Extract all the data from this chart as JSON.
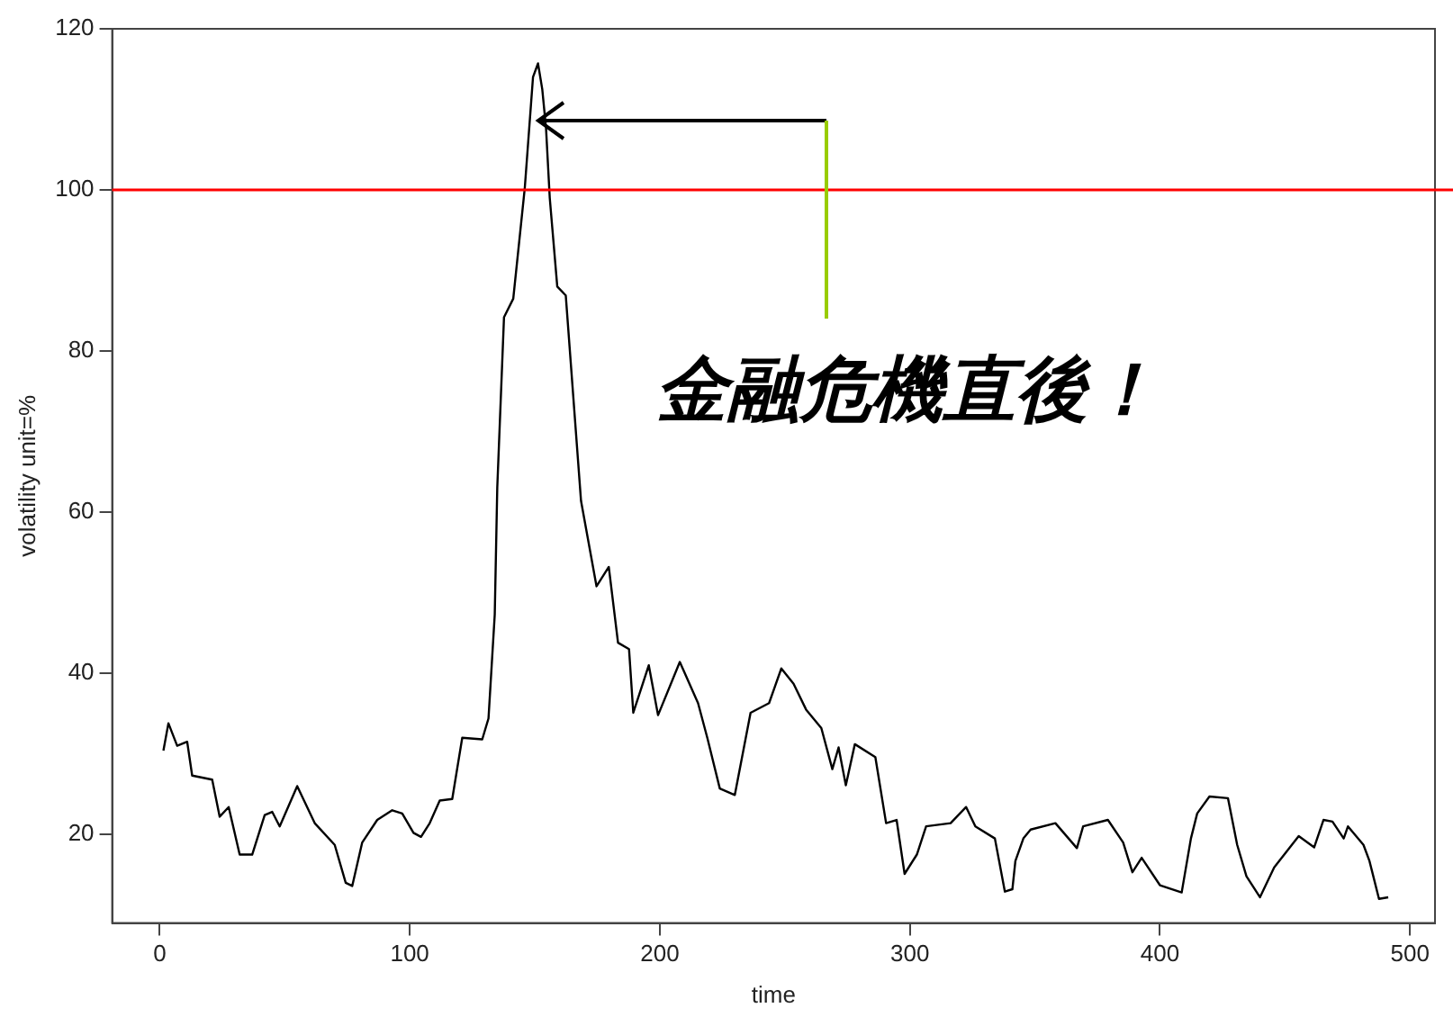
{
  "chart_data": {
    "type": "line",
    "xlabel": "time",
    "ylabel": "volatility unit=%",
    "x": [
      1.5,
      3.5,
      7,
      11,
      13,
      21,
      24,
      27.6,
      32,
      37,
      42,
      45,
      48,
      55,
      62,
      70,
      74.4,
      77,
      81,
      87,
      93,
      97,
      101.5,
      104.5,
      108,
      112,
      117,
      121,
      129,
      131.5,
      134,
      135,
      137.7,
      141.4,
      146,
      149.3,
      151.3,
      153,
      154.5,
      156,
      159,
      162.4,
      168.5,
      174.7,
      179.6,
      183.3,
      187.7,
      189.4,
      195.6,
      199.3,
      208,
      215.3,
      219,
      224,
      230,
      236.3,
      243.7,
      248.6,
      253.5,
      258.5,
      264.6,
      269,
      271.5,
      274.4,
      278,
      286.2,
      290.5,
      294.7,
      297.9,
      302.8,
      306.5,
      316.3,
      322.5,
      326.2,
      334,
      338,
      341,
      342.2,
      345.4,
      348.3,
      358.2,
      366.8,
      369.3,
      379.2,
      385.3,
      389,
      392.7,
      400,
      408.7,
      412.4,
      414.9,
      419.8,
      427.2,
      430.9,
      434.6,
      440,
      445.7,
      455.5,
      461.7,
      465.4,
      469,
      473.5,
      475.2,
      481.4,
      483.8,
      487.6,
      491.3
    ],
    "series": [
      {
        "color": "#000000",
        "values": [
          30.4,
          33.8,
          31,
          31.5,
          27.3,
          26.8,
          22.2,
          23.4,
          17.5,
          17.5,
          22.4,
          22.8,
          21,
          26,
          21.4,
          18.7,
          14,
          13.6,
          19,
          21.8,
          23,
          22.6,
          20.2,
          19.7,
          21.4,
          24.2,
          24.4,
          32,
          31.8,
          34.4,
          47.3,
          63,
          84.2,
          86.5,
          100.2,
          114,
          115.7,
          112.5,
          107.7,
          99,
          88,
          86.9,
          61.4,
          50.8,
          53.2,
          43.8,
          43,
          35.1,
          41,
          34.8,
          41.4,
          36.3,
          32,
          25.7,
          24.9,
          35.1,
          36.3,
          40.6,
          38.7,
          35.5,
          33.2,
          28.1,
          30.8,
          26.1,
          31.2,
          29.6,
          21.4,
          21.8,
          15.1,
          17.5,
          21,
          21.4,
          23.4,
          21,
          19.5,
          12.9,
          13.2,
          16.7,
          19.5,
          20.6,
          21.4,
          18.3,
          21,
          21.8,
          19,
          15.3,
          17.1,
          13.7,
          12.8,
          19.5,
          22.6,
          24.7,
          24.5,
          18.7,
          14.8,
          12.2,
          15.9,
          19.8,
          18.4,
          21.8,
          21.6,
          19.5,
          21,
          18.7,
          16.7,
          12,
          12.2
        ]
      }
    ],
    "xlim": [
      -19,
      510
    ],
    "xticks": [
      0,
      100,
      200,
      300,
      400,
      500
    ],
    "ylim": [
      9,
      120
    ],
    "yticks": [
      20,
      40,
      60,
      80,
      100,
      120
    ],
    "ref_lines": [
      {
        "axis": "y",
        "value": 100,
        "color": "#ff0000"
      }
    ],
    "annotations": [
      "金融危機直後！"
    ],
    "grid": false,
    "legend": false,
    "marker": "none",
    "line_style": "solid"
  }
}
